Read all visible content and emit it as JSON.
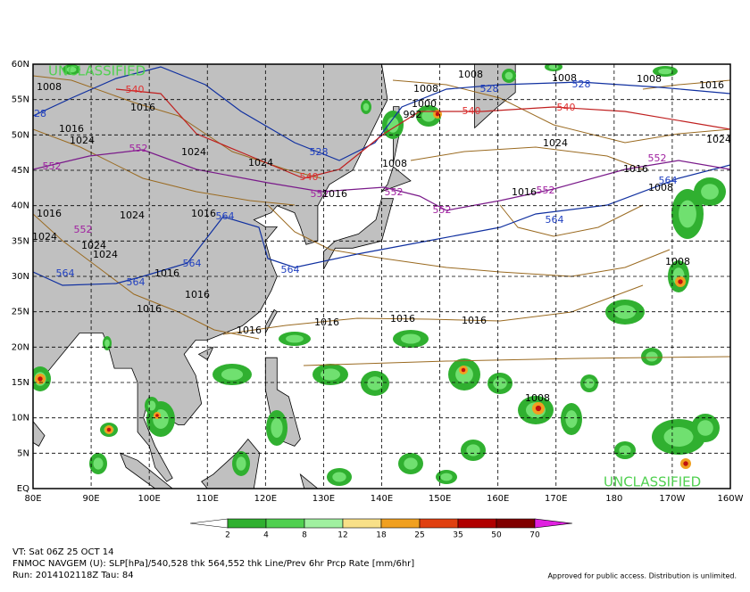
{
  "map": {
    "watermarks": [
      "UNCLASSIFIED",
      "UNCLASSIFIED"
    ],
    "lat_labels": [
      "60N",
      "55N",
      "50N",
      "45N",
      "40N",
      "35N",
      "30N",
      "25N",
      "20N",
      "15N",
      "10N",
      "5N",
      "EQ"
    ],
    "lon_labels": [
      "80E",
      "90E",
      "100E",
      "110E",
      "120E",
      "130E",
      "140E",
      "150E",
      "160E",
      "170E",
      "180",
      "170W",
      "160W"
    ],
    "contour_labels": [
      {
        "text": "1008",
        "color": "#000000"
      },
      {
        "text": "540",
        "color": "#e03030"
      },
      {
        "text": "1016",
        "color": "#000000"
      },
      {
        "text": "28",
        "color": "#2040c0"
      },
      {
        "text": "1016",
        "color": "#000000"
      },
      {
        "text": "1024",
        "color": "#000000"
      },
      {
        "text": "552",
        "color": "#a020a0"
      },
      {
        "text": "1024",
        "color": "#000000"
      },
      {
        "text": "552",
        "color": "#a020a0"
      },
      {
        "text": "1024",
        "color": "#000000"
      },
      {
        "text": "528",
        "color": "#2040c0"
      },
      {
        "text": "540",
        "color": "#e03030"
      },
      {
        "text": "552",
        "color": "#a020a0"
      },
      {
        "text": "1016",
        "color": "#000000"
      },
      {
        "text": "1016",
        "color": "#000000"
      },
      {
        "text": "1024",
        "color": "#000000"
      },
      {
        "text": "1016",
        "color": "#000000"
      },
      {
        "text": "564",
        "color": "#2040c0"
      },
      {
        "text": "552",
        "color": "#a020a0"
      },
      {
        "text": "1024",
        "color": "#000000"
      },
      {
        "text": "1024",
        "color": "#000000"
      },
      {
        "text": "1024",
        "color": "#000000"
      },
      {
        "text": "564",
        "color": "#2040c0"
      },
      {
        "text": "564",
        "color": "#2040c0"
      },
      {
        "text": "1016",
        "color": "#000000"
      },
      {
        "text": "564",
        "color": "#2040c0"
      },
      {
        "text": "1016",
        "color": "#000000"
      },
      {
        "text": "1016",
        "color": "#000000"
      },
      {
        "text": "564",
        "color": "#2040c0"
      },
      {
        "text": "1016",
        "color": "#000000"
      },
      {
        "text": "1016",
        "color": "#000000"
      },
      {
        "text": "1016",
        "color": "#000000"
      },
      {
        "text": "1016",
        "color": "#000000"
      },
      {
        "text": "1008",
        "color": "#000000"
      },
      {
        "text": "1008",
        "color": "#000000"
      },
      {
        "text": "528",
        "color": "#2040c0"
      },
      {
        "text": "1000",
        "color": "#000000"
      },
      {
        "text": "992",
        "color": "#000000"
      },
      {
        "text": "540",
        "color": "#e03030"
      },
      {
        "text": "1008",
        "color": "#000000"
      },
      {
        "text": "528",
        "color": "#2040c0"
      },
      {
        "text": "1008",
        "color": "#000000"
      },
      {
        "text": "540",
        "color": "#e03030"
      },
      {
        "text": "1024",
        "color": "#000000"
      },
      {
        "text": "1008",
        "color": "#000000"
      },
      {
        "text": "552",
        "color": "#a020a0"
      },
      {
        "text": "552",
        "color": "#a020a0"
      },
      {
        "text": "1016",
        "color": "#000000"
      },
      {
        "text": "552",
        "color": "#a020a0"
      },
      {
        "text": "564",
        "color": "#2040c0"
      },
      {
        "text": "1016",
        "color": "#000000"
      },
      {
        "text": "552",
        "color": "#a020a0"
      },
      {
        "text": "1008",
        "color": "#000000"
      },
      {
        "text": "564",
        "color": "#2040c0"
      },
      {
        "text": "1008",
        "color": "#000000"
      },
      {
        "text": "1024",
        "color": "#000000"
      },
      {
        "text": "1008",
        "color": "#000000"
      },
      {
        "text": "1016",
        "color": "#000000"
      }
    ],
    "colorbar": {
      "labels": [
        2,
        4,
        8,
        12,
        18,
        25,
        35,
        50,
        70
      ]
    }
  },
  "footer": {
    "valid": "VT: Sat 06Z 25 OCT 14",
    "model": "FNMOC NAVGEM (U): SLP[hPa]/540,528 thk 564,552 thk Line/Prev 6hr Prcp Rate [mm/6hr]",
    "run": "Run: 2014102118Z Tau: 84",
    "notice": "Approved for public access. Distribution is unlimited."
  }
}
